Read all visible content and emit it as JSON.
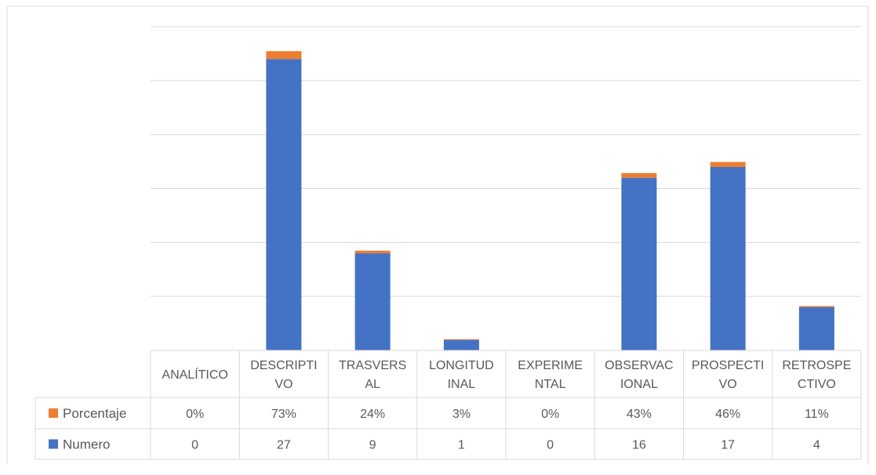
{
  "chart_data": {
    "type": "bar",
    "stacked": true,
    "categories": [
      [
        "ANALÍTICO"
      ],
      [
        "DESCRIPTI",
        "VO"
      ],
      [
        "TRASVERS",
        "AL"
      ],
      [
        "LONGITUD",
        "INAL"
      ],
      [
        "EXPERIME",
        "NTAL"
      ],
      [
        "OBSERVAC",
        "IONAL"
      ],
      [
        "PROSPECTI",
        "VO"
      ],
      [
        "RETROSPE",
        "CTIVO"
      ]
    ],
    "series": [
      {
        "name": "Numero",
        "color": "#4472c4",
        "values": [
          0,
          27,
          9,
          1,
          0,
          16,
          17,
          4
        ],
        "labels": [
          "0",
          "27",
          "9",
          "1",
          "0",
          "16",
          "17",
          "4"
        ]
      },
      {
        "name": "Porcentaje",
        "color": "#ed7d31",
        "values": [
          0,
          0.73,
          0.24,
          0.03,
          0,
          0.43,
          0.46,
          0.11
        ],
        "labels": [
          "0%",
          "73%",
          "24%",
          "3%",
          "0%",
          "43%",
          "46%",
          "11%"
        ]
      }
    ],
    "title": "",
    "xlabel": "",
    "ylabel": "",
    "ylim": [
      0,
      30
    ],
    "ytick_step": 5,
    "grid": true,
    "legend": "data-table",
    "data_table": true
  }
}
